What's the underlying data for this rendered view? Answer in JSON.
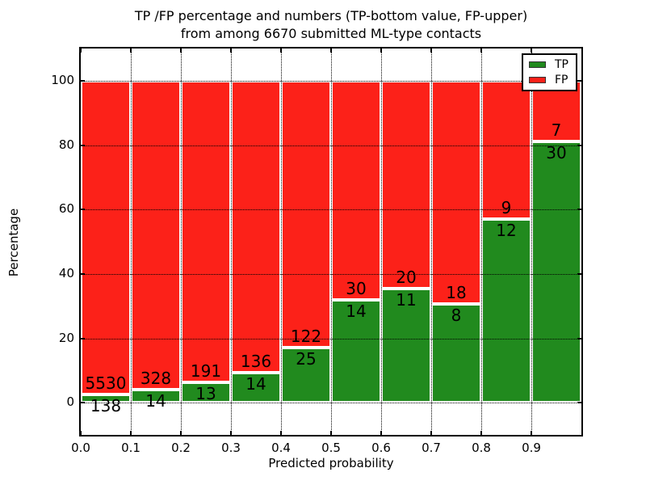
{
  "title": {
    "line1": "TP /FP percentage and numbers (TP-bottom value, FP-upper)",
    "line2": "from among 6670 submitted ML-type contacts"
  },
  "axes": {
    "xlabel": "Predicted probability",
    "ylabel": "Percentage"
  },
  "legend": {
    "items": [
      {
        "label": "TP",
        "color": "#218a1e"
      },
      {
        "label": "FP",
        "color": "#fc2119"
      }
    ]
  },
  "chart_data": {
    "type": "bar",
    "stacked": true,
    "title": "TP /FP percentage and numbers (TP-bottom value, FP-upper) from among 6670 submitted ML-type contacts",
    "xlabel": "Predicted probability",
    "ylabel": "Percentage",
    "total_contacts": 6670,
    "bin_left_edges": [
      0.0,
      0.1,
      0.2,
      0.3,
      0.4,
      0.5,
      0.6,
      0.7,
      0.8,
      0.9
    ],
    "bin_width": 0.1,
    "series": [
      {
        "name": "TP",
        "color": "#218a1e",
        "counts": [
          138,
          14,
          13,
          14,
          25,
          14,
          11,
          8,
          12,
          30
        ],
        "pct": [
          2.43,
          4.09,
          6.37,
          9.33,
          17.01,
          31.82,
          35.48,
          30.77,
          57.14,
          81.08
        ]
      },
      {
        "name": "FP",
        "color": "#fc2119",
        "counts": [
          5530,
          328,
          191,
          136,
          122,
          30,
          20,
          18,
          9,
          7
        ],
        "pct": [
          97.57,
          95.91,
          93.63,
          90.67,
          82.99,
          68.18,
          64.52,
          69.23,
          42.86,
          18.92
        ]
      }
    ],
    "bar_edge_color": "#ffffff",
    "xlim": [
      0.0,
      1.0
    ],
    "ylim": [
      -10,
      110
    ],
    "xticks": [
      0.0,
      0.1,
      0.2,
      0.3,
      0.4,
      0.5,
      0.6,
      0.7,
      0.8,
      0.9
    ],
    "xtick_labels": [
      "0.0",
      "0.1",
      "0.2",
      "0.3",
      "0.4",
      "0.5",
      "0.6",
      "0.7",
      "0.8",
      "0.9"
    ],
    "yticks": [
      0,
      20,
      40,
      60,
      80,
      100
    ],
    "ytick_labels": [
      "0",
      "20",
      "40",
      "60",
      "80",
      "100"
    ],
    "grid": true,
    "grid_style": "dotted",
    "legend_position": "upper right"
  }
}
